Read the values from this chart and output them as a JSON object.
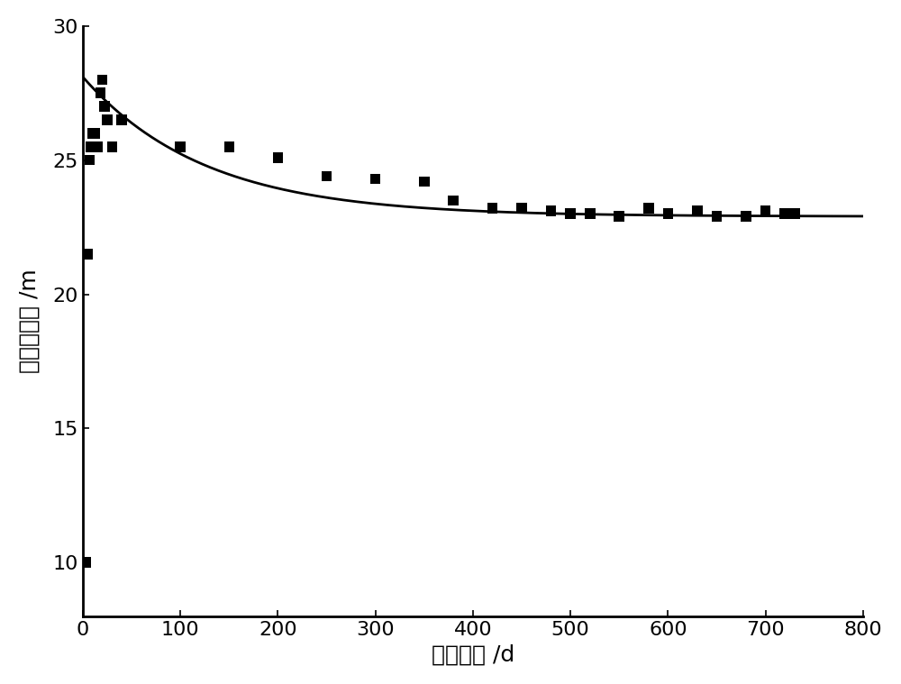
{
  "scatter_x": [
    3,
    5,
    7,
    8,
    10,
    12,
    15,
    18,
    20,
    22,
    25,
    30,
    40,
    100,
    150,
    200,
    250,
    300,
    350,
    380,
    420,
    450,
    480,
    500,
    520,
    550,
    580,
    600,
    630,
    650,
    680,
    700,
    720,
    730
  ],
  "scatter_y": [
    10.0,
    21.5,
    25.0,
    25.5,
    26.0,
    26.0,
    25.5,
    27.5,
    28.0,
    27.0,
    26.5,
    25.5,
    26.5,
    25.5,
    25.5,
    25.1,
    24.4,
    24.3,
    24.2,
    23.5,
    23.2,
    23.2,
    23.1,
    23.0,
    23.0,
    22.9,
    23.2,
    23.0,
    23.1,
    22.9,
    22.9,
    23.1,
    23.0,
    23.0
  ],
  "curve_params": {
    "a": 22.9,
    "b": 5.2,
    "c": 0.008
  },
  "xlim": [
    0,
    800
  ],
  "ylim": [
    8,
    30
  ],
  "xticks": [
    0,
    100,
    200,
    300,
    400,
    500,
    600,
    700,
    800
  ],
  "yticks": [
    10,
    15,
    20,
    25,
    30
  ],
  "xlabel": "开采天数 /d",
  "ylabel": "冒落带高度 /m",
  "marker_color": "#000000",
  "line_color": "#000000",
  "background_color": "#ffffff",
  "xlabel_fontsize": 18,
  "ylabel_fontsize": 18,
  "tick_fontsize": 16,
  "marker_size": 70,
  "line_width": 2.0
}
